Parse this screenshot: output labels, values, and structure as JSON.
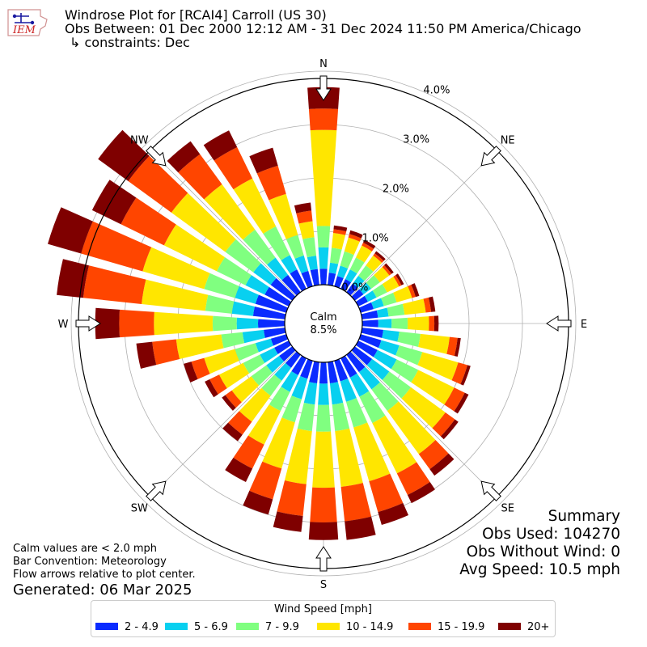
{
  "header": {
    "title": "Windrose Plot for [RCAI4] Carroll (US 30)",
    "period": "Obs Between: 01 Dec 2000 12:12 AM - 31 Dec 2024 11:50 PM America/Chicago",
    "constraints": "↳ constraints: Dec"
  },
  "logo": {
    "text": "IEM"
  },
  "calm": {
    "label": "Calm",
    "value": "8.5%"
  },
  "summary": {
    "title": "Summary",
    "obs_used": "Obs Used: 104270",
    "obs_without_wind": "Obs Without Wind: 0",
    "avg_speed": "Avg Speed: 10.5 mph"
  },
  "notes": {
    "line1": "Calm values are < 2.0 mph",
    "line2": "Bar Convention: Meteorology",
    "line3": "Flow arrows relative to plot center."
  },
  "generated": "Generated: 06 Mar 2025",
  "colors": {
    "grid": "#b0b0b0",
    "bins": [
      "#0a2bff",
      "#08d0f0",
      "#80ff80",
      "#ffe600",
      "#ff4500",
      "#7f0000"
    ]
  },
  "chart_data": {
    "type": "windrose",
    "compass_labels": [
      "N",
      "NE",
      "E",
      "SE",
      "S",
      "SW",
      "W",
      "NW"
    ],
    "radial_ticks": [
      "0.0%",
      "1.0%",
      "2.0%",
      "3.0%",
      "4.0%"
    ],
    "radial_tick_values": [
      0,
      1,
      2,
      3,
      4
    ],
    "legend_title": "Wind Speed [mph]",
    "speed_bins": [
      "2 - 4.9",
      "5 - 6.9",
      "7 - 9.9",
      "10 - 14.9",
      "15 - 19.9",
      "20+"
    ],
    "directions_deg": [
      0,
      10,
      20,
      30,
      40,
      50,
      60,
      70,
      80,
      90,
      100,
      110,
      120,
      130,
      140,
      150,
      160,
      170,
      180,
      190,
      200,
      210,
      220,
      230,
      240,
      250,
      260,
      270,
      280,
      290,
      300,
      310,
      320,
      330,
      340,
      350
    ],
    "cumulative_pct": [
      [
        0.3,
        0.7,
        1.1,
        2.9,
        3.3,
        3.7
      ],
      [
        0.23,
        0.42,
        0.7,
        0.98,
        1.05,
        1.12
      ],
      [
        0.2,
        0.4,
        0.68,
        0.95,
        1.02,
        1.09
      ],
      [
        0.2,
        0.4,
        0.65,
        0.9,
        0.96,
        1.02
      ],
      [
        0.2,
        0.38,
        0.62,
        0.85,
        0.9,
        0.95
      ],
      [
        0.2,
        0.38,
        0.58,
        0.8,
        0.85,
        0.9
      ],
      [
        0.2,
        0.38,
        0.6,
        0.85,
        0.9,
        0.95
      ],
      [
        0.25,
        0.45,
        0.7,
        1.0,
        1.07,
        1.14
      ],
      [
        0.3,
        0.5,
        0.8,
        1.2,
        1.3,
        1.38
      ],
      [
        0.3,
        0.55,
        0.85,
        1.25,
        1.35,
        1.43
      ],
      [
        0.4,
        0.7,
        1.1,
        1.65,
        1.8,
        1.86
      ],
      [
        0.4,
        0.75,
        1.2,
        1.9,
        2.08,
        2.14
      ],
      [
        0.4,
        0.8,
        1.25,
        2.0,
        2.22,
        2.3
      ],
      [
        0.4,
        0.8,
        1.3,
        2.1,
        2.32,
        2.4
      ],
      [
        0.4,
        0.8,
        1.3,
        2.3,
        2.65,
        2.8
      ],
      [
        0.4,
        0.8,
        1.35,
        2.4,
        2.85,
        3.02
      ],
      [
        0.4,
        0.8,
        1.3,
        2.35,
        2.95,
        3.2
      ],
      [
        0.4,
        0.8,
        1.3,
        2.35,
        3.0,
        3.35
      ],
      [
        0.4,
        0.8,
        1.3,
        2.35,
        3.0,
        3.33
      ],
      [
        0.4,
        0.8,
        1.3,
        2.3,
        2.9,
        3.2
      ],
      [
        0.35,
        0.75,
        1.2,
        2.1,
        2.7,
        3.0
      ],
      [
        0.35,
        0.7,
        1.1,
        1.8,
        2.3,
        2.58
      ],
      [
        0.3,
        0.6,
        0.95,
        1.55,
        1.85,
        2.0
      ],
      [
        0.3,
        0.6,
        0.95,
        1.4,
        1.55,
        1.63
      ],
      [
        0.3,
        0.6,
        0.95,
        1.45,
        1.65,
        1.75
      ],
      [
        0.3,
        0.6,
        1.0,
        1.6,
        1.85,
        2.0
      ],
      [
        0.4,
        0.8,
        1.2,
        2.05,
        2.5,
        2.8
      ],
      [
        0.5,
        0.9,
        1.35,
        2.45,
        3.1,
        3.55
      ],
      [
        0.6,
        1.0,
        1.5,
        2.7,
        3.8,
        4.3
      ],
      [
        0.6,
        1.0,
        1.6,
        2.8,
        4.0,
        4.65
      ],
      [
        0.5,
        0.9,
        1.5,
        2.6,
        3.5,
        4.1
      ],
      [
        0.5,
        0.9,
        1.55,
        2.8,
        3.8,
        4.5
      ],
      [
        0.4,
        0.8,
        1.45,
        2.5,
        3.2,
        3.5
      ],
      [
        0.4,
        0.7,
        1.3,
        2.3,
        2.95,
        3.3
      ],
      [
        0.3,
        0.6,
        1.0,
        1.8,
        2.35,
        2.7
      ],
      [
        0.3,
        0.55,
        0.9,
        1.2,
        1.4,
        1.55
      ]
    ]
  }
}
